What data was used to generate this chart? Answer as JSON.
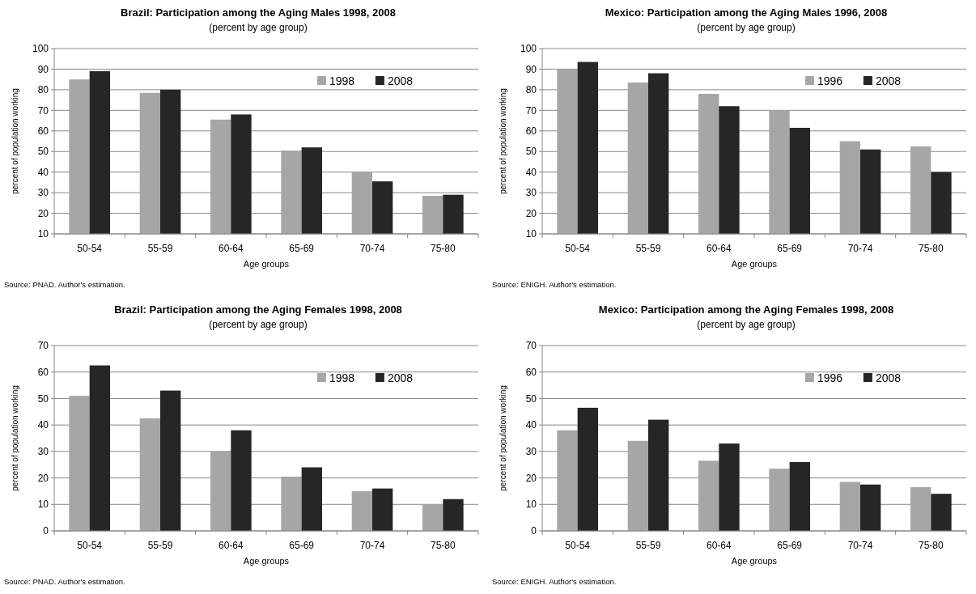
{
  "chart_data": [
    {
      "type": "bar",
      "title": "Brazil: Participation among the Aging Males 1998,  2008",
      "subtitle": "(percent by age group)",
      "xlabel": "Age groups",
      "ylabel": "percent of population working",
      "categories": [
        "50-54",
        "55-59",
        "60-64",
        "65-69",
        "70-74",
        "75-80"
      ],
      "series": [
        {
          "name": "1998",
          "color": "#a6a6a6",
          "values": [
            85,
            78.5,
            65.5,
            50.5,
            40,
            28.5
          ]
        },
        {
          "name": "2008",
          "color": "#262626",
          "values": [
            89,
            80,
            68,
            52,
            35.5,
            29
          ]
        }
      ],
      "ylim": [
        10,
        100
      ],
      "yticks": [
        10,
        20,
        30,
        40,
        50,
        60,
        70,
        80,
        90,
        100
      ],
      "grid": "y",
      "legend": "top right",
      "annotations": [
        "Source: PNAD. Author's estimation."
      ]
    },
    {
      "type": "bar",
      "title": "Mexico: Participation among the Aging Males 1996,  2008",
      "subtitle": "(percent by age group)",
      "xlabel": "Age groups",
      "ylabel": "percent of population working",
      "categories": [
        "50-54",
        "55-59",
        "60-64",
        "65-69",
        "70-74",
        "75-80"
      ],
      "series": [
        {
          "name": "1996",
          "color": "#a6a6a6",
          "values": [
            90,
            83.5,
            78,
            70,
            55,
            52.5
          ]
        },
        {
          "name": "2008",
          "color": "#262626",
          "values": [
            93.5,
            88,
            72,
            61.5,
            51,
            40
          ]
        }
      ],
      "ylim": [
        10,
        100
      ],
      "yticks": [
        10,
        20,
        30,
        40,
        50,
        60,
        70,
        80,
        90,
        100
      ],
      "grid": "y",
      "legend": "top right",
      "annotations": [
        "Source: ENIGH. Author's estimation."
      ]
    },
    {
      "type": "bar",
      "title": "Brazil: Participation among the Aging Females 1998,  2008",
      "subtitle": "(percent by age group)",
      "xlabel": "Age groups",
      "ylabel": "percent of population working",
      "categories": [
        "50-54",
        "55-59",
        "60-64",
        "65-69",
        "70-74",
        "75-80"
      ],
      "series": [
        {
          "name": "1998",
          "color": "#a6a6a6",
          "values": [
            51,
            42.5,
            30,
            20.5,
            15,
            10
          ]
        },
        {
          "name": "2008",
          "color": "#262626",
          "values": [
            62.5,
            53,
            38,
            24,
            16,
            12
          ]
        }
      ],
      "ylim": [
        0,
        70
      ],
      "yticks": [
        0,
        10,
        20,
        30,
        40,
        50,
        60,
        70
      ],
      "grid": "y",
      "legend": "top right",
      "annotations": [
        "Source: PNAD. Author's estimation."
      ]
    },
    {
      "type": "bar",
      "title": "Mexico: Participation among the Aging Females 1998, 2008",
      "subtitle": "(percent by age group)",
      "xlabel": "Age groups",
      "ylabel": "percent of population working",
      "categories": [
        "50-54",
        "55-59",
        "60-64",
        "65-69",
        "70-74",
        "75-80"
      ],
      "series": [
        {
          "name": "1996",
          "color": "#a6a6a6",
          "values": [
            38,
            34,
            26.5,
            23.5,
            18.5,
            16.5
          ]
        },
        {
          "name": "2008",
          "color": "#262626",
          "values": [
            46.5,
            42,
            33,
            26,
            17.5,
            14
          ]
        }
      ],
      "ylim": [
        0,
        70
      ],
      "yticks": [
        0,
        10,
        20,
        30,
        40,
        50,
        60,
        70
      ],
      "grid": "y",
      "legend": "top right",
      "annotations": [
        "Source: ENIGH. Author's estimation."
      ]
    }
  ]
}
